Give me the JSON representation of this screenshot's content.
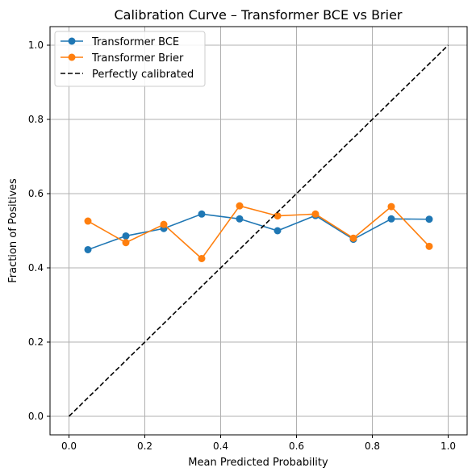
{
  "chart_data": {
    "type": "line",
    "title": "Calibration Curve – Transformer BCE vs Brier",
    "xlabel": "Mean Predicted Probability",
    "ylabel": "Fraction of Positives",
    "xlim": [
      -0.05,
      1.05
    ],
    "ylim": [
      -0.05,
      1.05
    ],
    "xticks": [
      "0.0",
      "0.2",
      "0.4",
      "0.6",
      "0.8",
      "1.0"
    ],
    "yticks": [
      "0.0",
      "0.2",
      "0.4",
      "0.6",
      "0.8",
      "1.0"
    ],
    "grid": true,
    "legend_position": "top-left",
    "series": [
      {
        "name": "Transformer BCE",
        "color": "#1f77b4",
        "marker": "circle",
        "x": [
          0.05,
          0.15,
          0.25,
          0.35,
          0.45,
          0.55,
          0.65,
          0.75,
          0.85,
          0.95
        ],
        "y": [
          0.449,
          0.486,
          0.506,
          0.545,
          0.532,
          0.5,
          0.541,
          0.477,
          0.532,
          0.531
        ]
      },
      {
        "name": "Transformer Brier",
        "color": "#ff7f0e",
        "marker": "circle",
        "x": [
          0.05,
          0.15,
          0.25,
          0.35,
          0.45,
          0.55,
          0.65,
          0.75,
          0.85,
          0.95
        ],
        "y": [
          0.526,
          0.468,
          0.517,
          0.425,
          0.567,
          0.54,
          0.545,
          0.48,
          0.565,
          0.458
        ]
      },
      {
        "name": "Perfectly calibrated",
        "color": "#000000",
        "marker": "none",
        "dashed": true,
        "x": [
          0,
          1
        ],
        "y": [
          0,
          1
        ]
      }
    ]
  }
}
